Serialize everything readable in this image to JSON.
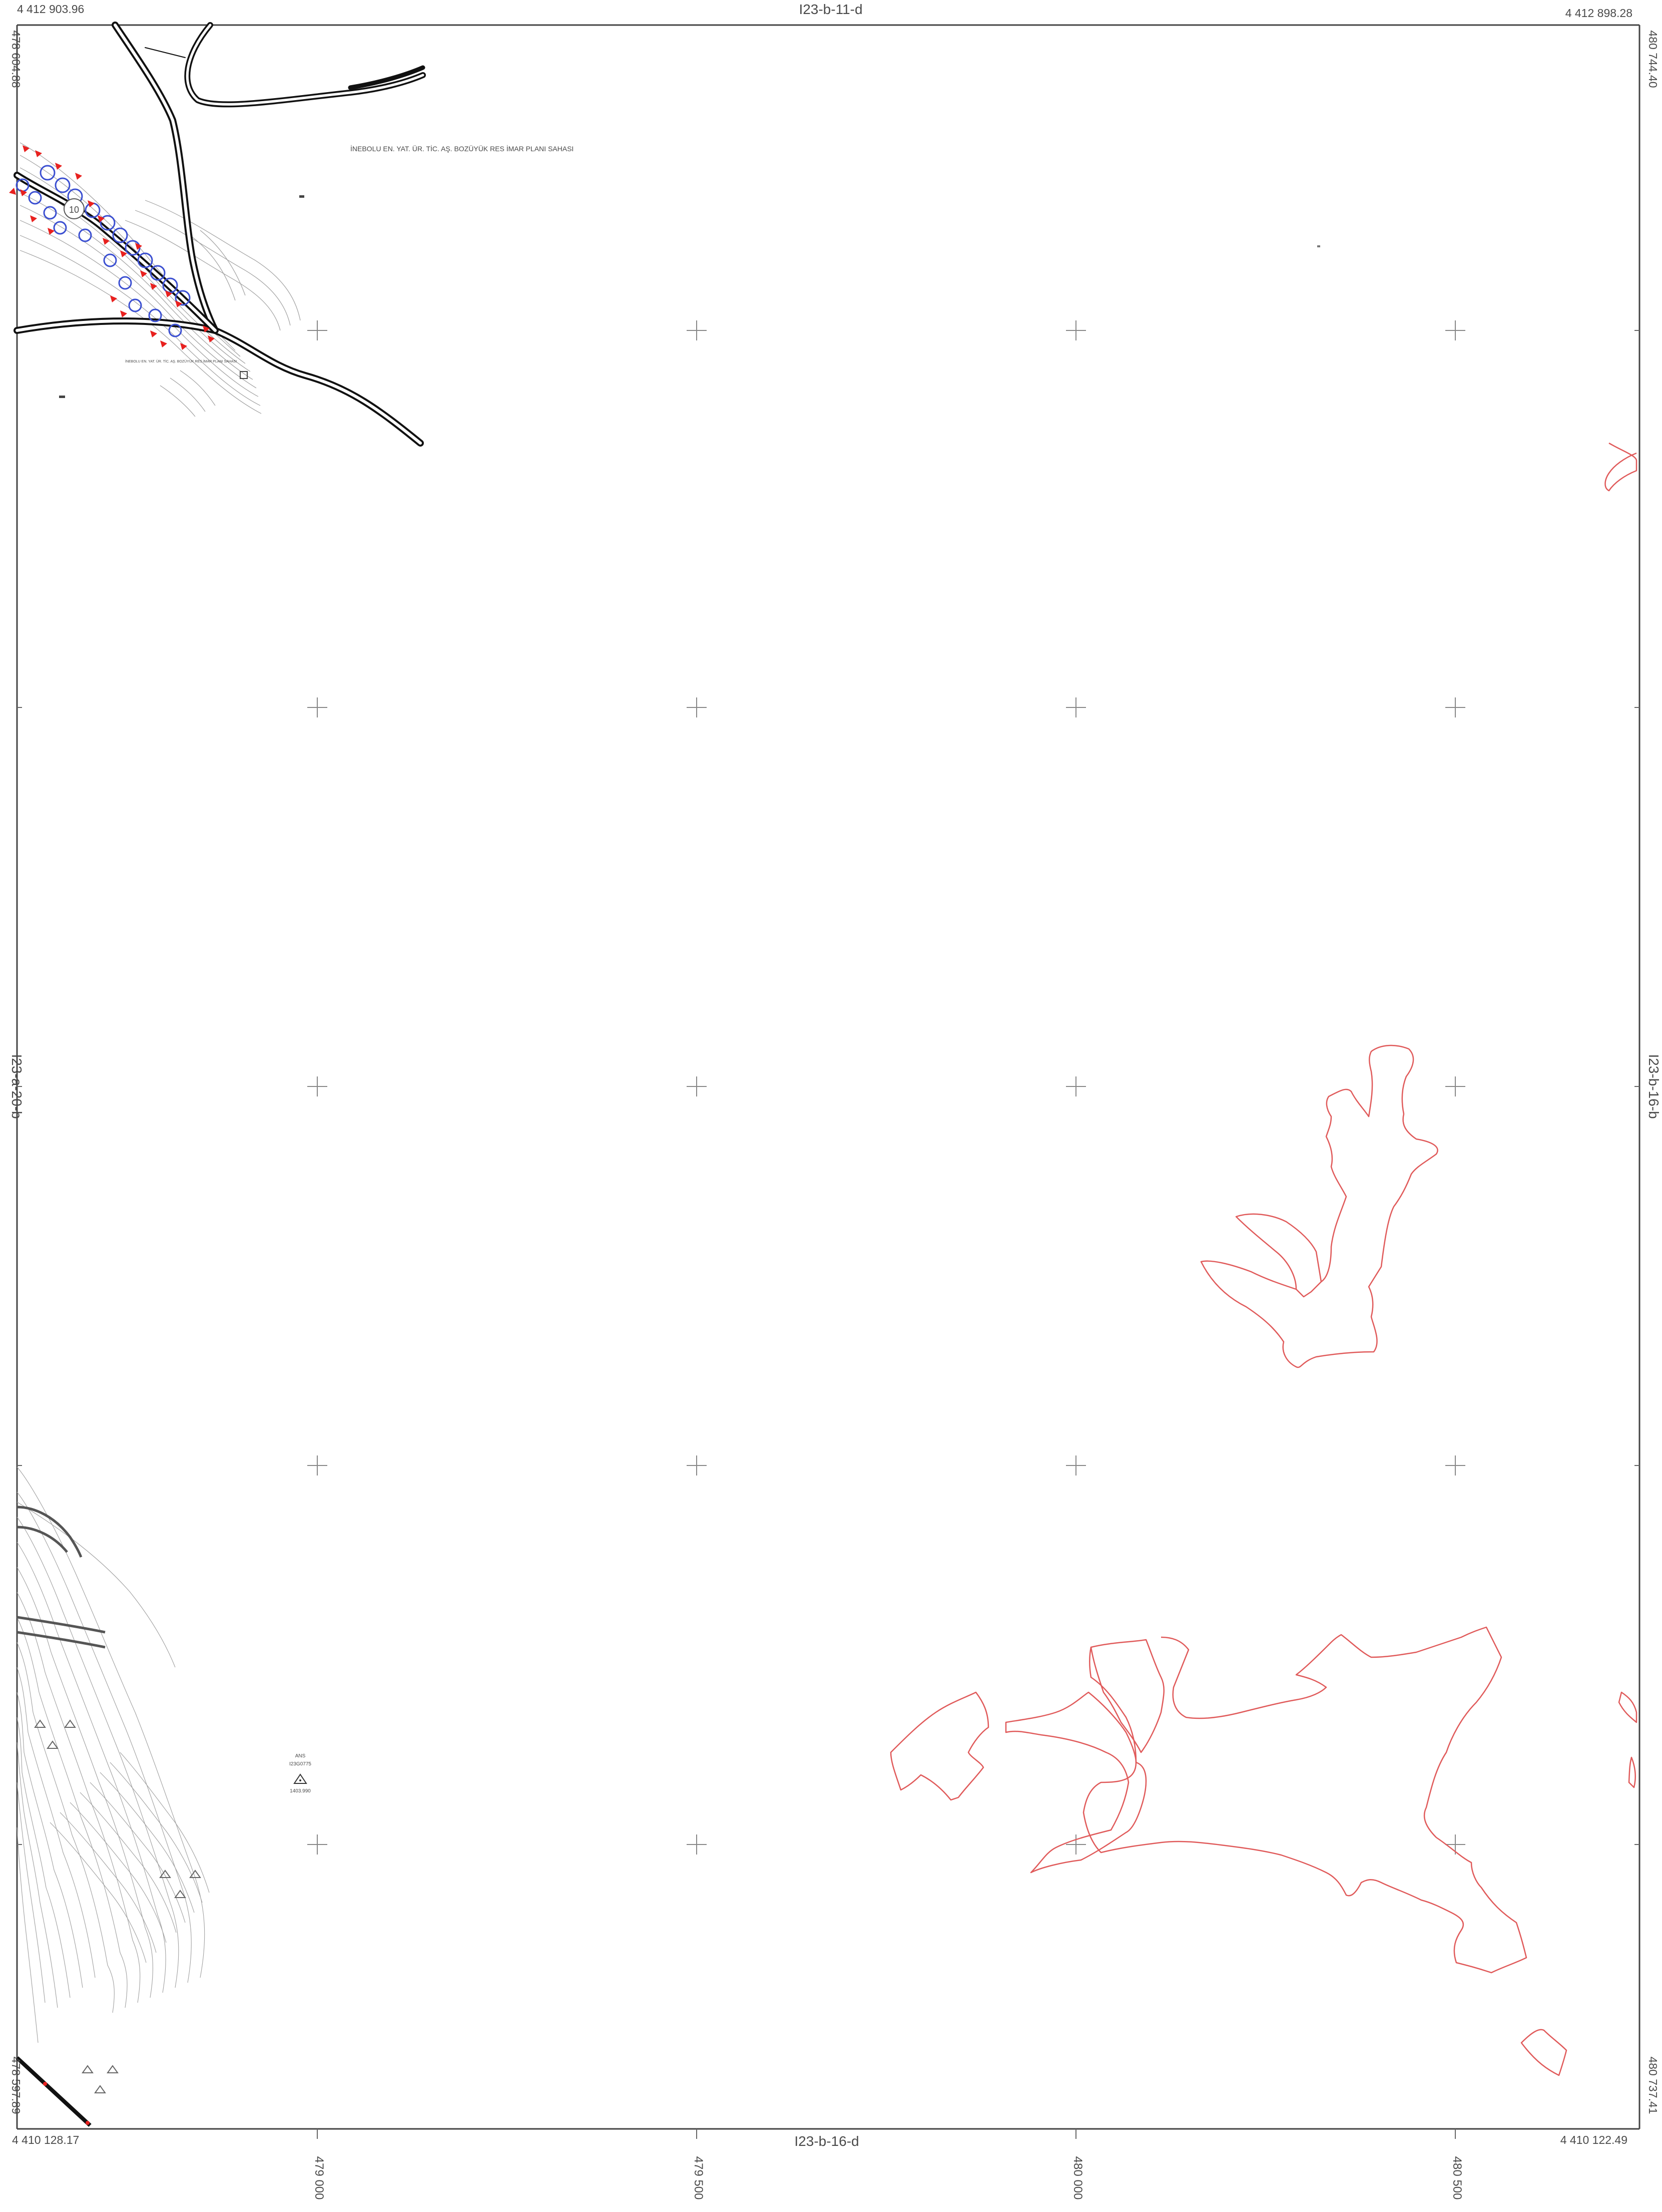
{
  "sheet": {
    "name": "I23-b-11-d",
    "neighbors": {
      "top": "I23-b-11-d",
      "bottom": "I23-b-16-d",
      "right": "I23-b-16-b",
      "left": "I23-a-20-b"
    }
  },
  "corners": {
    "top_left_northing": "4 412 903.96",
    "top_right_northing": "4 412 898.28",
    "bottom_left_northing": "4 410 128.17",
    "bottom_right_northing": "4 410 122.49",
    "top_left_easting": "478 604.88",
    "top_right_easting": "480 744.40",
    "bottom_right_easting": "480 737.41",
    "bottom_left_easting": "478 597.89"
  },
  "easting_ticks": [
    "479 000",
    "479 500",
    "480 000",
    "480 500"
  ],
  "plan_area_title": "İNEBOLU  EN. YAT. ÜR. TİC. AŞ.  BOZÜYÜK RES İMAR PLANI SAHASI",
  "plan_area_subtitle": "İNEBOLU EN. YAT. ÜR. TİC. AŞ. BOZÜYÜK RES İMAR PLANI SAHASI",
  "turbine_number": "10",
  "survey_point": {
    "label": "ANS",
    "code": "I23G0775",
    "elevation": "1403.990"
  },
  "colors": {
    "parcel_outline": "#e05a5a",
    "road": "#111111",
    "contour": "#9a9a9a",
    "marker": "#e8211f",
    "turbine_circle": "#3b4fd1"
  }
}
